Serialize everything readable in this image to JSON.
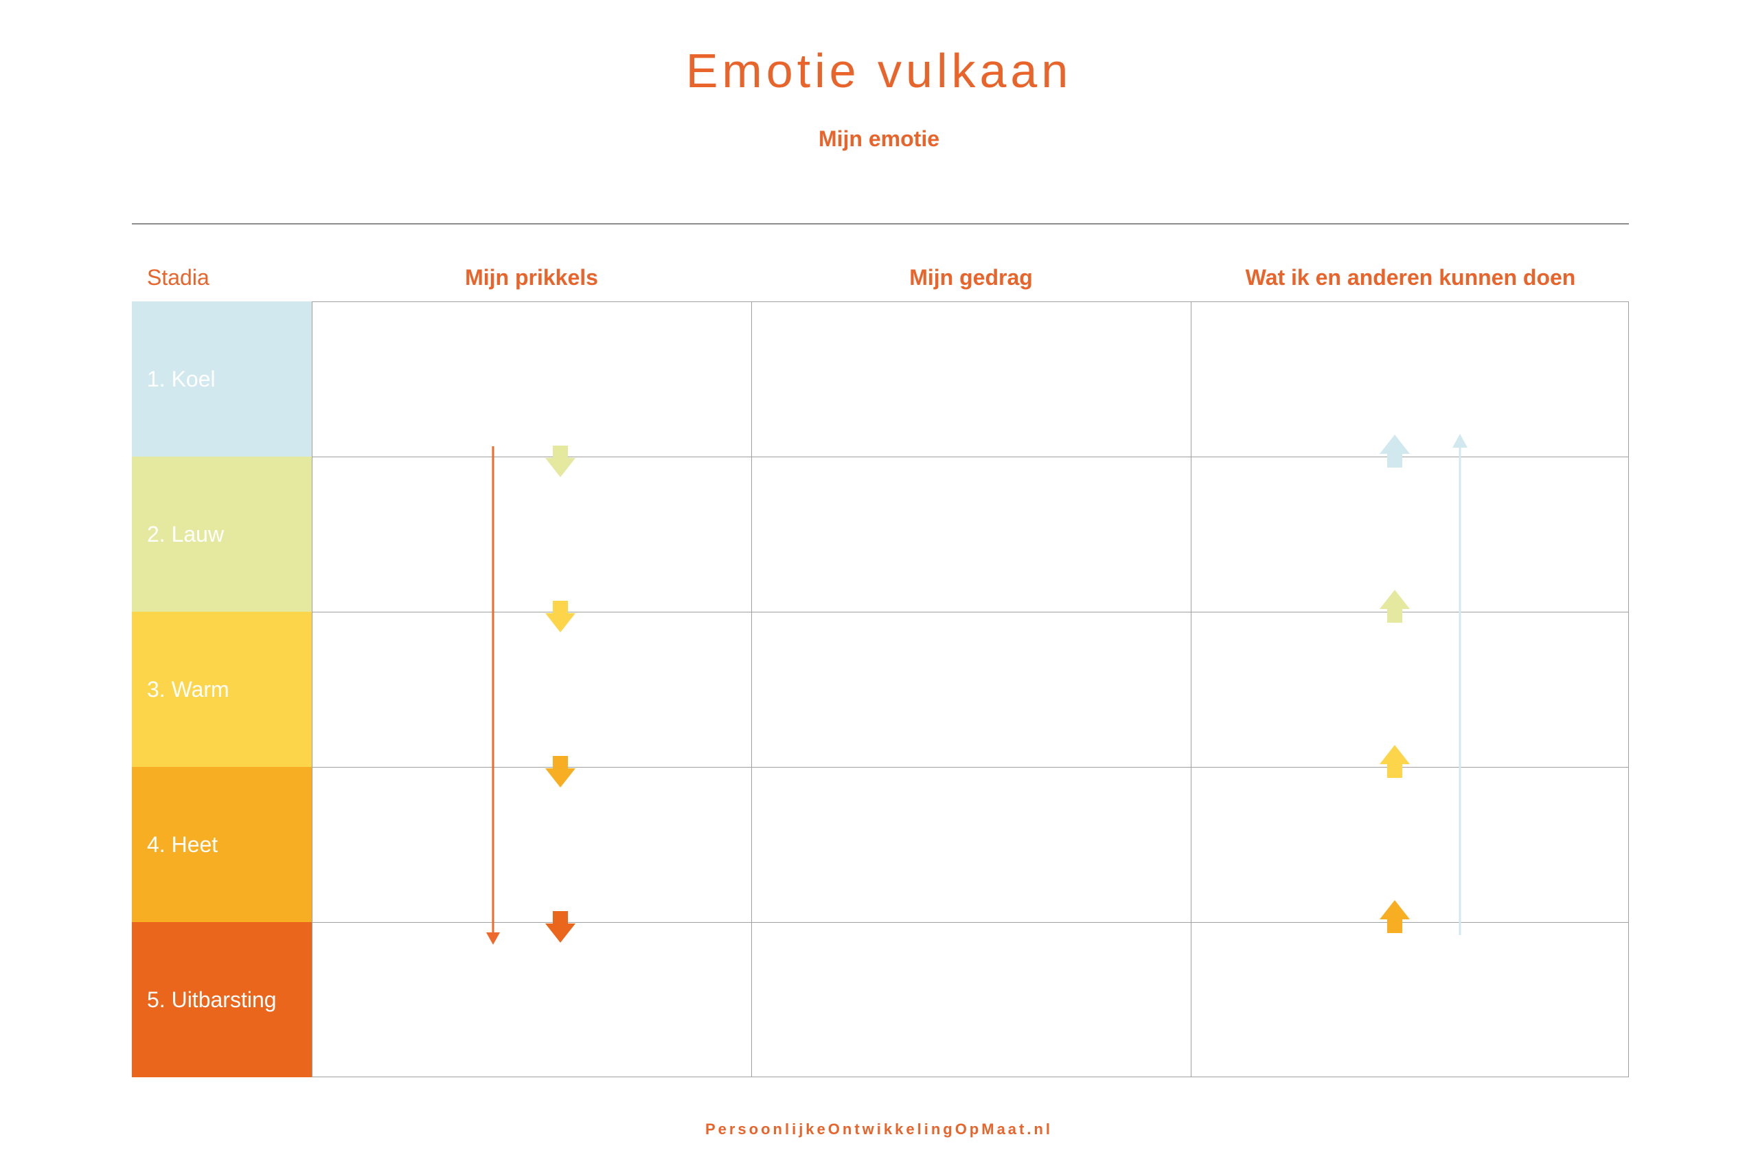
{
  "title": "Emotie vulkaan",
  "subtitle": "Mijn emotie",
  "headers": {
    "stages": "Stadia",
    "triggers": "Mijn prikkels",
    "behavior": "Mijn gedrag",
    "actions": "Wat ik en anderen kunnen doen"
  },
  "stages": [
    {
      "label": "1. Koel",
      "color": "#D1E9EE"
    },
    {
      "label": "2. Lauw",
      "color": "#E5E9A0"
    },
    {
      "label": "3. Warm",
      "color": "#FDD54A"
    },
    {
      "label": "4. Heet",
      "color": "#F8AE22"
    },
    {
      "label": "5. Uitbarsting",
      "color": "#EA661C"
    }
  ],
  "colors": {
    "accent": "#E8642B",
    "grid_line": "#A0A0A0",
    "down_line": "#EE6A2C",
    "up_line": "#D1E9EE"
  },
  "arrows": {
    "down_icon": "arrow-down-icon",
    "up_icon": "arrow-up-icon"
  },
  "footer": "PersoonlijkeOntwikkelingOpMaat.nl"
}
